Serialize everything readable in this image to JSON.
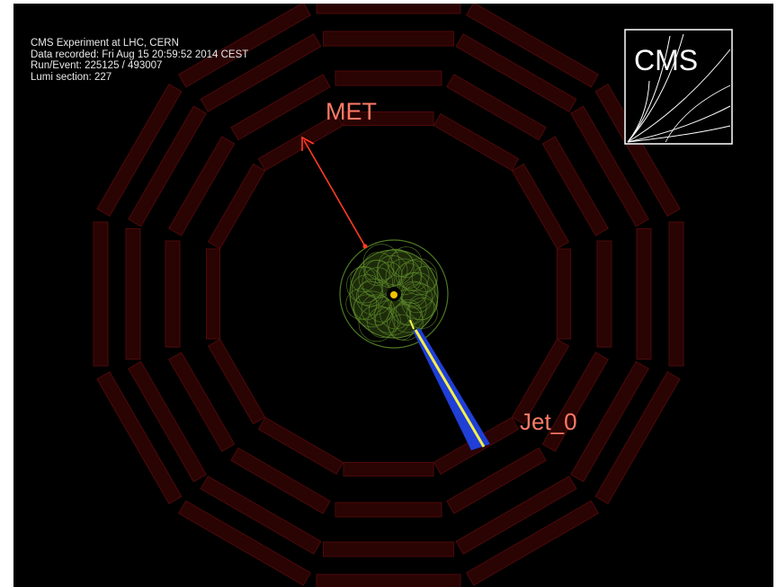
{
  "event_info": {
    "experiment": "CMS Experiment at LHC, CERN",
    "recorded": "Data recorded: Fri Aug 15 20:59:52 2014 CEST",
    "run_event": "Run/Event: 225125 / 493007",
    "lumi": "Lumi section: 227"
  },
  "logo": {
    "text": "CMS"
  },
  "labels": {
    "met": "MET",
    "jet": "Jet_0"
  },
  "colors": {
    "background": "#000000",
    "muon_chamber_fill": "#2a0303",
    "muon_chamber_stroke": "#4c0a0a",
    "met_arrow": "#ff3b24",
    "label_text": "#ff7a66",
    "jet_outer": "#1f3fd6",
    "jet_inner": "#f6f04a",
    "tracker_tracks": "#5e8a2a",
    "vertex": "#f2c200"
  }
}
